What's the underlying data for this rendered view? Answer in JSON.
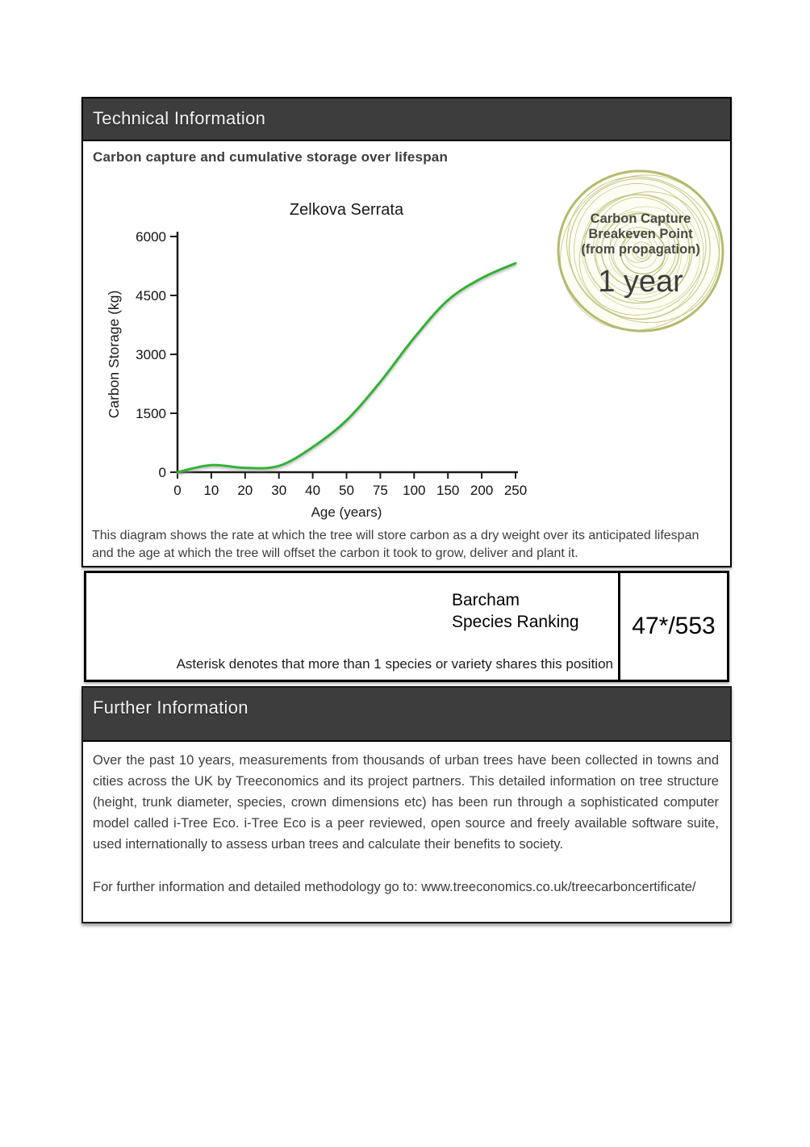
{
  "technical_section": {
    "header": "Technical Information",
    "heading": "Carbon capture and cumulative storage over lifespan",
    "description": "This diagram shows the rate at which the tree will store carbon as a dry weight over its anticipated lifespan and the age at which the tree will offset the carbon it took to grow, deliver and plant it."
  },
  "chart_data": {
    "type": "line",
    "title": "Zelkova Serrata",
    "xlabel": "Age (years)",
    "ylabel": "Carbon Storage (kg)",
    "categories": [
      "0",
      "10",
      "20",
      "30",
      "40",
      "50",
      "75",
      "100",
      "150",
      "200",
      "250"
    ],
    "values": [
      0,
      180,
      110,
      160,
      640,
      1320,
      2300,
      3420,
      4380,
      4940,
      5320
    ],
    "yticks": [
      0,
      1500,
      3000,
      4500,
      6000
    ],
    "ylim": [
      0,
      6000
    ],
    "grid": false,
    "legend": "none",
    "line_color": "#32b136",
    "axis_color": "#1a1a1a"
  },
  "badge": {
    "line1": "Carbon Capture",
    "line2": "Breakeven Point",
    "line3": "(from propagation)",
    "value": "1 year",
    "ring_color": "#b5ba6e",
    "ring_fill": "#fdfdf3"
  },
  "ranking": {
    "org": "Barcham",
    "label": "Species Ranking",
    "value": "47*/553",
    "note": "Asterisk denotes that more than 1 species or variety shares this position"
  },
  "further_section": {
    "header": "Further Information",
    "paragraph": "Over the past 10 years, measurements from thousands of urban trees have been collected in towns and cities across the UK by Treeconomics and its project partners. This detailed information on tree structure (height, trunk diameter, species, crown dimensions etc) has been run through a sophisticated computer model called i-Tree Eco. i-Tree Eco is a peer reviewed, open source and freely available software suite, used internationally to assess urban trees and calculate their benefits to society.",
    "link_line": "For further information and detailed methodology go to: www.treeconomics.co.uk/treecarboncertificate/"
  },
  "colors": {
    "header_bar": "#3d3d3d",
    "header_text": "#f4f4f4",
    "body_text": "#3d3d3d"
  }
}
